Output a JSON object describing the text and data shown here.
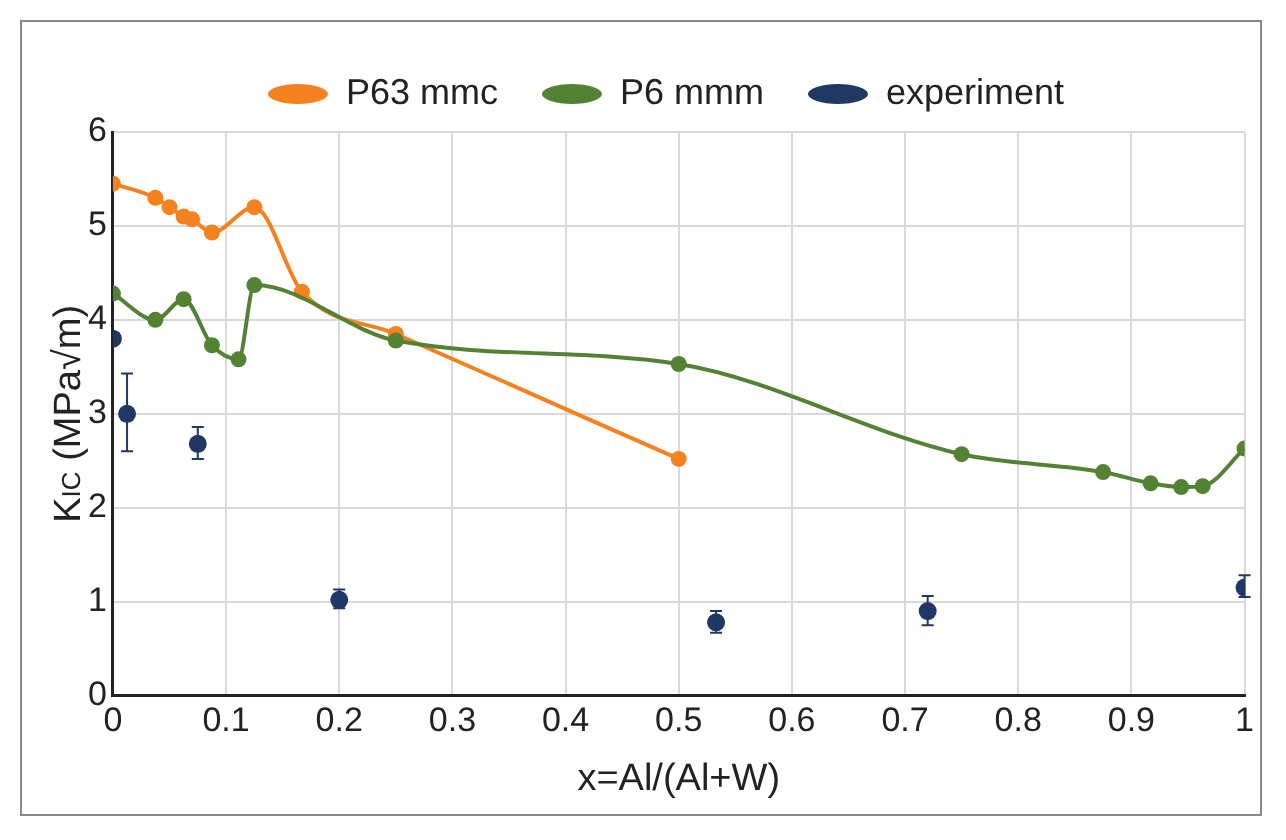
{
  "chart_data": {
    "type": "line",
    "xlabel": "x=Al/(Al+W)",
    "ylabel": "K$_{IC}$ (MPa√m)",
    "xlim": [
      0,
      1
    ],
    "xticks": [
      0,
      0.1,
      0.2,
      0.3,
      0.4,
      0.5,
      0.6,
      0.7,
      0.8,
      0.9,
      1
    ],
    "ylim": [
      0,
      6
    ],
    "yticks": [
      0,
      1,
      2,
      3,
      4,
      5,
      6
    ],
    "grid": true,
    "legend": "top",
    "marker": "circle",
    "series": [
      {
        "name": "P63 mmc",
        "color": "#f58220",
        "x": [
          0,
          0.0375,
          0.05,
          0.0625,
          0.07,
          0.0875,
          0.125,
          0.167,
          0.25,
          0.5
        ],
        "values": [
          5.45,
          5.3,
          5.2,
          5.1,
          5.07,
          4.93,
          5.2,
          4.3,
          3.85,
          2.52
        ]
      },
      {
        "name": "P6 mmm",
        "color": "#548235",
        "x": [
          0,
          0.0375,
          0.0625,
          0.0875,
          0.111,
          0.125,
          0.25,
          0.5,
          0.75,
          0.875,
          0.917,
          0.944,
          0.963,
          1
        ],
        "values": [
          4.28,
          4.0,
          4.22,
          3.73,
          3.58,
          4.37,
          3.78,
          3.53,
          2.57,
          2.38,
          2.26,
          2.22,
          2.23,
          2.63
        ]
      },
      {
        "name": "experiment",
        "type": "scatter",
        "color": "#1f3864",
        "x": [
          0,
          0.0125,
          0.075,
          0.2,
          0.533,
          0.72,
          1
        ],
        "values": [
          3.8,
          3.0,
          2.68,
          1.02,
          0.78,
          0.9,
          1.15
        ],
        "errors": [
          null,
          [
            2.6,
            3.43
          ],
          [
            2.52,
            2.86
          ],
          [
            0.93,
            1.13
          ],
          [
            0.67,
            0.9
          ],
          [
            0.75,
            1.06
          ],
          [
            1.05,
            1.28
          ]
        ]
      }
    ]
  }
}
